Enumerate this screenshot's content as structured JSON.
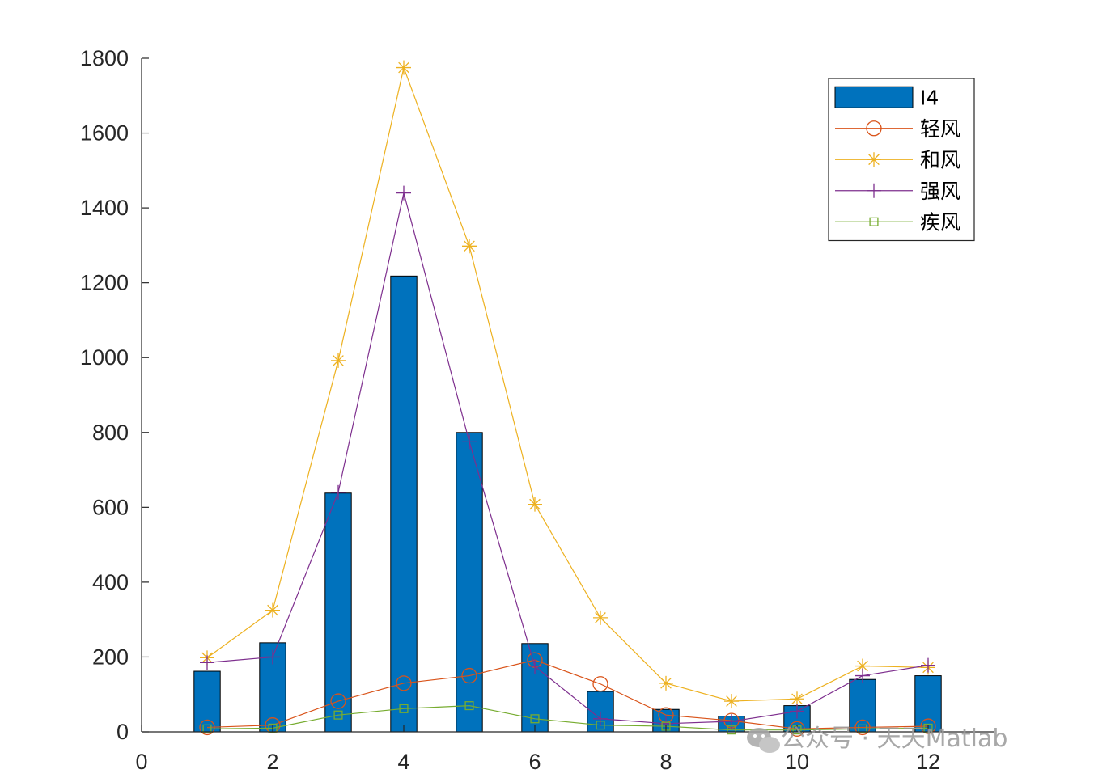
{
  "chart_data": {
    "type": "bar",
    "x": [
      1,
      2,
      3,
      4,
      5,
      6,
      7,
      8,
      9,
      10,
      11,
      12
    ],
    "xlim": [
      0,
      13
    ],
    "ylim": [
      0,
      1800
    ],
    "xticks": [
      "0",
      "2",
      "4",
      "6",
      "8",
      "10",
      "12"
    ],
    "yticks": [
      "0",
      "200",
      "400",
      "600",
      "800",
      "1000",
      "1200",
      "1400",
      "1600",
      "1800"
    ],
    "bar_series": {
      "name": "I4",
      "color": "#0072BD",
      "values": [
        162,
        238,
        638,
        1218,
        800,
        236,
        108,
        60,
        42,
        70,
        140,
        150
      ]
    },
    "line_series": [
      {
        "name": "轻风",
        "color": "#D95319",
        "marker": "circle",
        "values": [
          12,
          18,
          82,
          130,
          150,
          192,
          128,
          45,
          30,
          8,
          12,
          15
        ]
      },
      {
        "name": "和风",
        "color": "#EDB120",
        "marker": "asterisk",
        "values": [
          198,
          325,
          992,
          1775,
          1298,
          608,
          305,
          130,
          82,
          88,
          176,
          172
        ]
      },
      {
        "name": "强风",
        "color": "#7E2F8E",
        "marker": "plus",
        "values": [
          185,
          200,
          640,
          1440,
          775,
          175,
          35,
          22,
          28,
          55,
          150,
          178
        ]
      },
      {
        "name": "疾风",
        "color": "#77AC30",
        "marker": "square",
        "values": [
          8,
          10,
          45,
          62,
          70,
          35,
          18,
          15,
          5,
          5,
          8,
          10
        ]
      }
    ],
    "legend_position": "top-right",
    "grid": false
  },
  "watermark": {
    "icon": "wechat-icon",
    "text": "公众号 · 天天Matlab"
  }
}
